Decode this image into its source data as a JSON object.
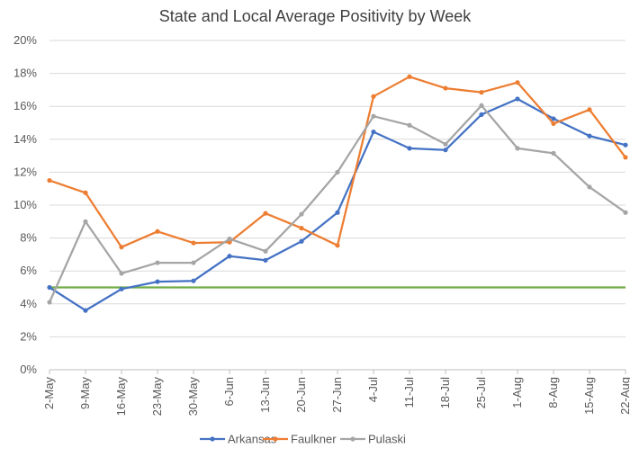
{
  "chart_data": {
    "type": "line",
    "title": "State and Local Average Positivity by Week",
    "xlabel": "",
    "ylabel": "",
    "ylim": [
      0,
      20
    ],
    "ytick_step": 2,
    "ytick_format": "percent",
    "grid": true,
    "legend_position": "bottom",
    "categories": [
      "2-May",
      "9-May",
      "16-May",
      "23-May",
      "30-May",
      "6-Jun",
      "13-Jun",
      "20-Jun",
      "27-Jun",
      "4-Jul",
      "11-Jul",
      "18-Jul",
      "25-Jul",
      "1-Aug",
      "8-Aug",
      "15-Aug",
      "22-Aug"
    ],
    "series": [
      {
        "name": "Arkansas",
        "color": "#4472C4",
        "values": [
          5.0,
          3.6,
          4.9,
          5.35,
          5.4,
          6.9,
          6.65,
          7.8,
          9.55,
          14.45,
          13.45,
          13.35,
          15.5,
          16.45,
          15.25,
          14.2,
          13.65
        ]
      },
      {
        "name": "Faulkner",
        "color": "#ED7D31",
        "values": [
          11.5,
          10.75,
          7.45,
          8.4,
          7.7,
          7.75,
          9.5,
          8.6,
          7.55,
          16.6,
          17.8,
          17.1,
          16.85,
          17.45,
          14.95,
          15.8,
          12.9
        ]
      },
      {
        "name": "Pulaski",
        "color": "#A5A5A5",
        "values": [
          4.1,
          9.0,
          5.85,
          6.5,
          6.5,
          7.95,
          7.2,
          9.45,
          12.0,
          15.4,
          14.85,
          13.7,
          16.05,
          13.45,
          13.15,
          11.1,
          9.55
        ]
      }
    ],
    "reference_line": {
      "value": 5,
      "color": "#70AD47"
    }
  }
}
